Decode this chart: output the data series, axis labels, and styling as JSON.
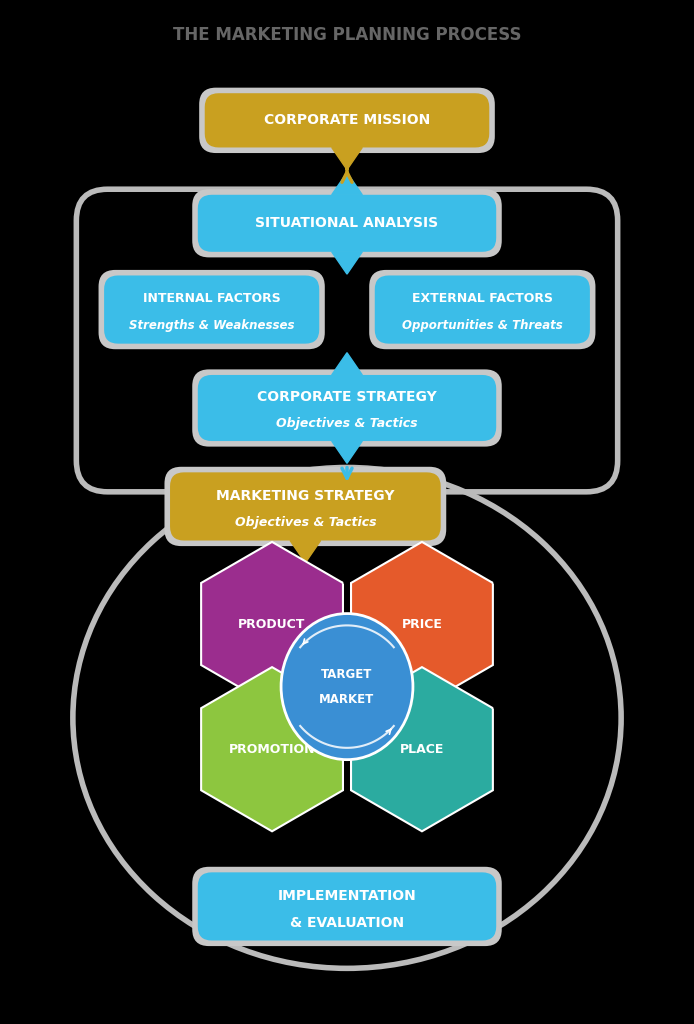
{
  "title": "THE MARKETING PLANNING PROCESS",
  "title_color": "#666666",
  "title_fontsize": 12,
  "bg_color": "#000000",
  "box_colors": {
    "corporate_mission": "#C9A020",
    "situational_analysis": "#3BBDE8",
    "internal_factors": "#3BBDE8",
    "external_factors": "#3BBDE8",
    "corporate_strategy": "#3BBDE8",
    "marketing_strategy": "#C9A020",
    "implementation": "#3BBDE8"
  },
  "hex_colors": {
    "product": "#9B2D8E",
    "price": "#E55A2B",
    "promotion": "#8DC63F",
    "place": "#2BABA0",
    "target_market": "#3A8FD4"
  },
  "bracket_color": "#BBBBBB",
  "shadow_color": "#C8C8C8",
  "arrow_color_gold": "#C9A020",
  "arrow_color_blue": "#3BBDE8",
  "white": "#FFFFFF",
  "labels": {
    "corporate_mission": "CORPORATE MISSION",
    "situational_analysis": "SITUATIONAL ANALYSIS",
    "internal_line1": "INTERNAL FACTORS",
    "internal_line2": "Strengths & Weaknesses",
    "external_line1": "EXTERNAL FACTORS",
    "external_line2": "Opportunities & Threats",
    "corporate_line1": "CORPORATE STRATEGY",
    "corporate_line2": "Objectives & Tactics",
    "marketing_line1": "MARKETING STRATEGY",
    "marketing_line2": "Objectives & Tactics",
    "product": "PRODUCT",
    "price": "PRICE",
    "promotion": "PROMOTION",
    "place": "PLACE",
    "target_line1": "TARGET",
    "target_line2": "MARKET",
    "impl_line1": "IMPLEMENTATION",
    "impl_line2": "& EVALUATION"
  }
}
